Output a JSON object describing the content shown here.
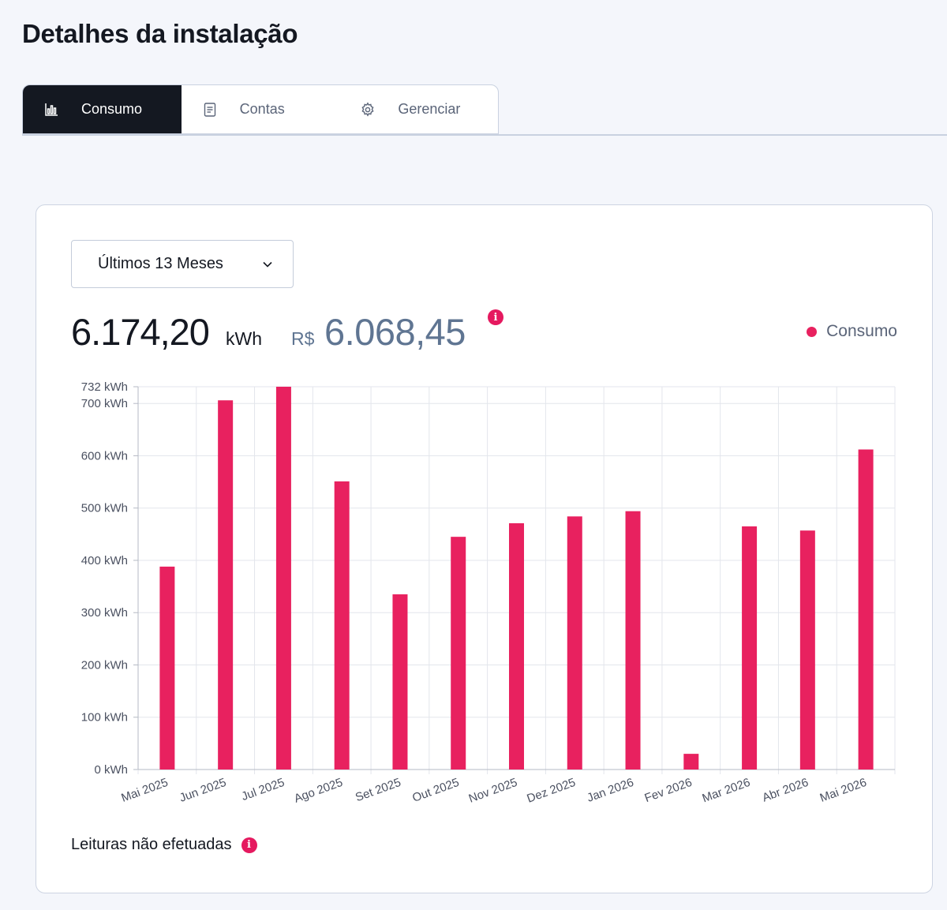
{
  "header": {
    "title": "Detalhes da instalação"
  },
  "tabs": [
    {
      "label": "Consumo",
      "icon": "bar-chart-icon",
      "active": true
    },
    {
      "label": "Contas",
      "icon": "document-icon",
      "active": false
    },
    {
      "label": "Gerenciar",
      "icon": "gear-icon",
      "active": false
    }
  ],
  "period": {
    "selected": "Últimos 13 Meses"
  },
  "summary": {
    "kwh_value": "6.174,20",
    "kwh_unit": "kWh",
    "currency_prefix": "R$",
    "currency_value": "6.068,45",
    "info_glyph": "i"
  },
  "legend": {
    "label": "Consumo",
    "color": "#e8215f"
  },
  "chart_data": {
    "type": "bar",
    "categories": [
      "Mai 2025",
      "Jun 2025",
      "Jul 2025",
      "Ago 2025",
      "Set 2025",
      "Out 2025",
      "Nov 2025",
      "Dez 2025",
      "Jan 2026",
      "Fev 2026",
      "Mar 2026",
      "Abr 2026",
      "Mai 2026"
    ],
    "series": [
      {
        "name": "Consumo",
        "values": [
          388,
          706,
          732,
          551,
          335,
          445,
          471,
          484,
          494,
          30,
          465,
          457,
          612
        ],
        "color": "#e8215f"
      }
    ],
    "yticks": [
      "0 kWh",
      "100 kWh",
      "200 kWh",
      "300 kWh",
      "400 kWh",
      "500 kWh",
      "600 kWh",
      "700 kWh",
      "732 kWh"
    ],
    "ytick_values": [
      0,
      100,
      200,
      300,
      400,
      500,
      600,
      700,
      732
    ],
    "ylim": [
      0,
      732
    ],
    "grid": true,
    "legend_position": "top-right"
  },
  "footer": {
    "missed_readings_label": "Leituras não efetuadas"
  }
}
